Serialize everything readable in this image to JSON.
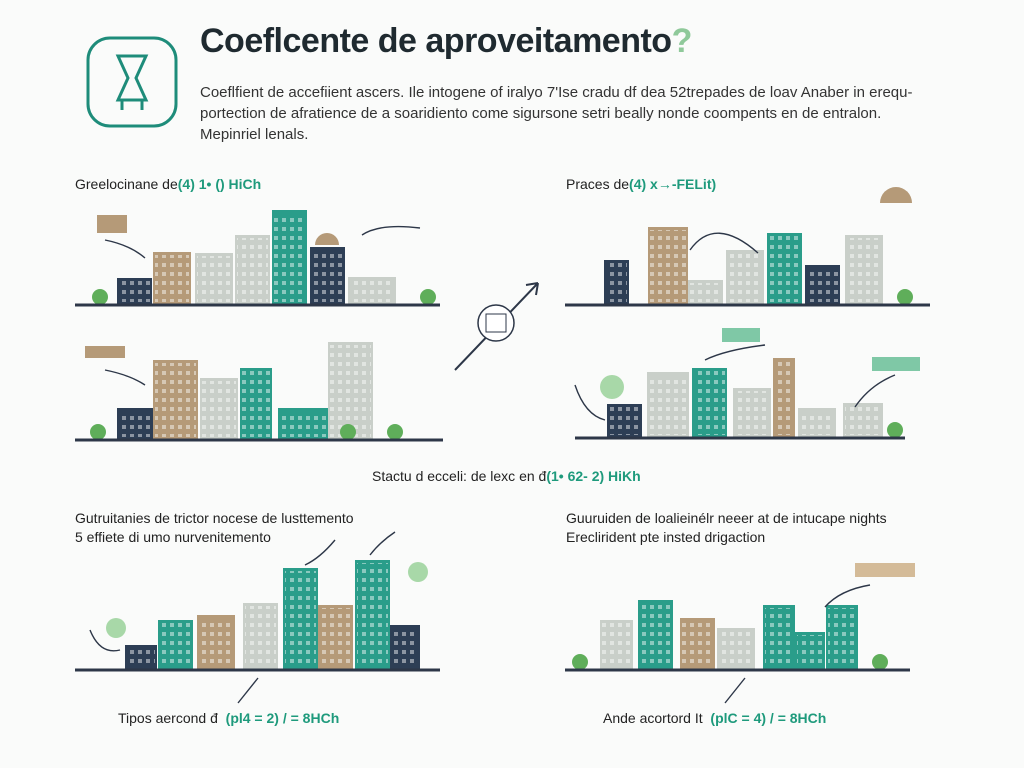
{
  "header": {
    "title": "Coeflcente de aproveitamento",
    "title_mark": "?",
    "intro": [
      "Coeflfient de accefiient ascers. Ile intogene of iralyo 7'Ise cradu df dea 52trepades de loav Anaber in erequ-",
      "portection de afratience de a soaridiento come sigursone setri beally nonde coompents en de entralon.",
      "Mepinriel lenals."
    ]
  },
  "panels": [
    {
      "label": "Greelocinane de",
      "formula": "(4) 1• () HiCh"
    },
    {
      "label": "Praces de",
      "formula": "(4) x→-FELit)"
    },
    {
      "label": "Stactu d ecceli: de lexc en đ",
      "formula": "(1• 62- 2) HiKh"
    },
    {
      "lines": [
        "Gutruitanies de trictor nocese de lusttemento",
        "5 effiete di umo nurvenitemento"
      ]
    },
    {
      "lines": [
        "Guuruiden de loalieinélr neeer at de intucape nights",
        "Ereclirident pte insted drigaction"
      ]
    },
    {
      "label": "Tipos aercond đ",
      "formula": "(pl4 = 2) / = 8HCh"
    },
    {
      "label": "Ande acortord It",
      "formula": "(plC = 4) / = 8HCh"
    }
  ]
}
